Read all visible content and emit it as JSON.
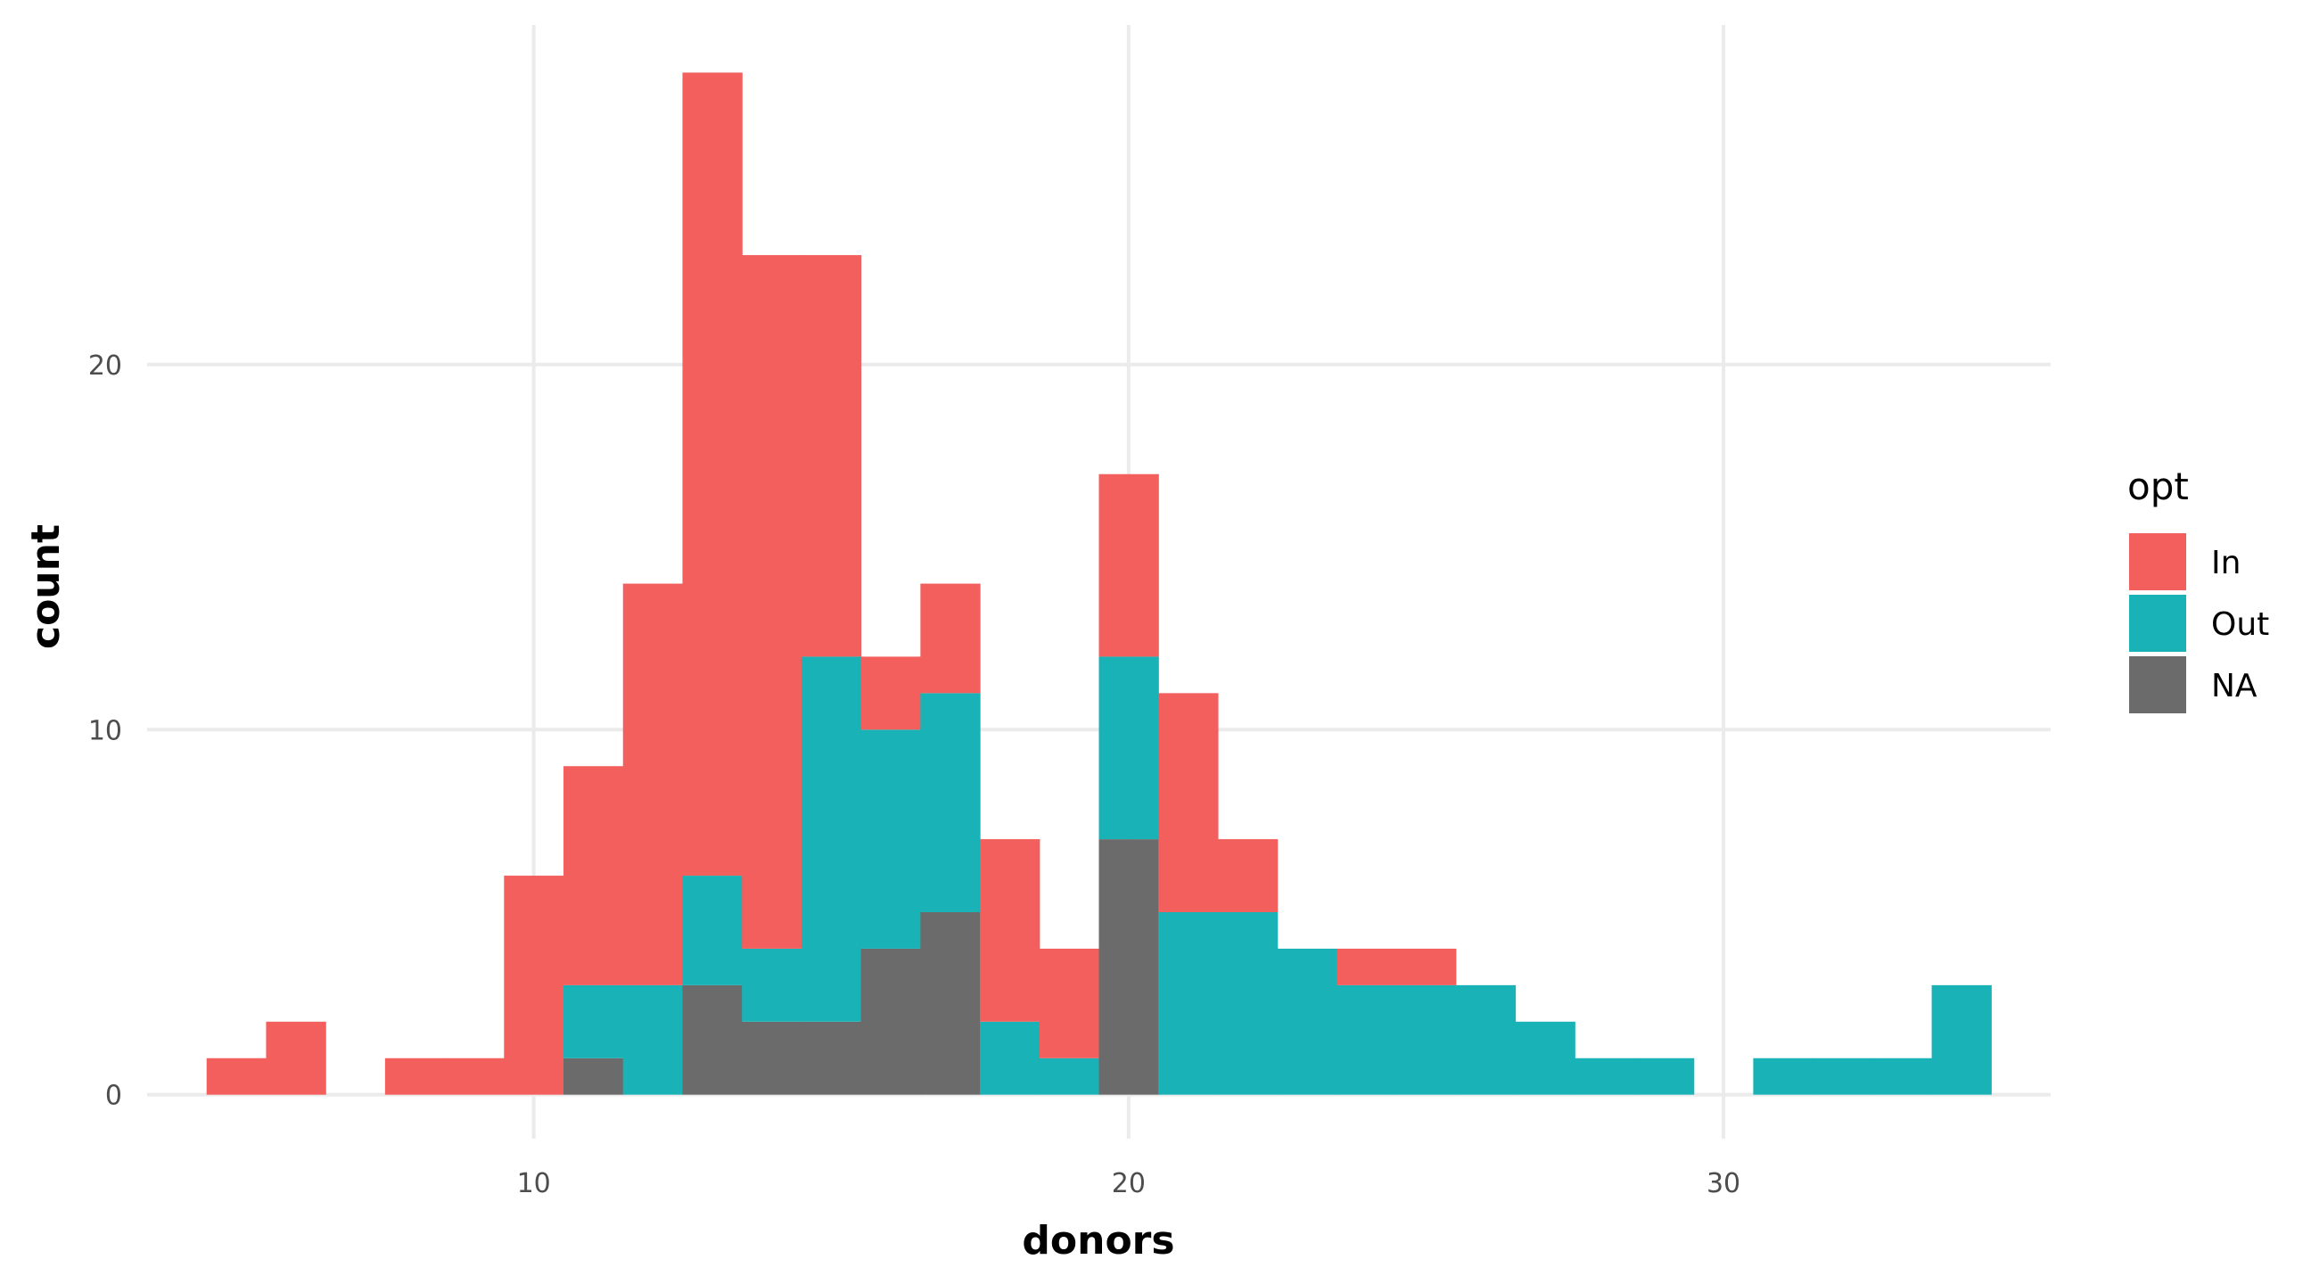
{
  "chart_data": {
    "type": "bar",
    "stacked": true,
    "title": "",
    "xlabel": "donors",
    "ylabel": "count",
    "xlim": [
      3.5,
      35.5
    ],
    "ylim": [
      -1.4,
      29.5
    ],
    "x_ticks": [
      10,
      20,
      30
    ],
    "y_ticks": [
      0,
      10,
      20
    ],
    "x_tick_labels": [
      "10",
      "20",
      "30"
    ],
    "y_tick_labels": [
      "0",
      "10",
      "20"
    ],
    "bin_width": 1,
    "bin_centers": [
      5,
      6,
      7,
      8,
      9,
      10,
      11,
      12,
      13,
      14,
      15,
      16,
      17,
      18,
      19,
      20,
      21,
      22,
      23,
      24,
      25,
      26,
      27,
      28,
      29,
      30,
      31,
      32,
      33,
      34
    ],
    "series": [
      {
        "name": "NA",
        "color": "#6b6b6b",
        "values": [
          0,
          0,
          0,
          0,
          0,
          0,
          1,
          0,
          3,
          2,
          2,
          4,
          5,
          0,
          0,
          7,
          0,
          0,
          0,
          0,
          0,
          0,
          0,
          0,
          0,
          0,
          0,
          0,
          0,
          0
        ]
      },
      {
        "name": "Out",
        "color": "#19b3b7",
        "values": [
          0,
          0,
          0,
          0,
          0,
          0,
          2,
          3,
          3,
          2,
          10,
          6,
          6,
          2,
          1,
          5,
          5,
          5,
          4,
          3,
          3,
          3,
          2,
          1,
          1,
          0,
          1,
          1,
          1,
          3
        ]
      },
      {
        "name": "In",
        "color": "#f25f5c",
        "values": [
          1,
          2,
          0,
          1,
          1,
          6,
          6,
          11,
          22,
          19,
          11,
          2,
          3,
          5,
          3,
          5,
          6,
          2,
          0,
          1,
          1,
          0,
          0,
          0,
          0,
          0,
          0,
          0,
          0,
          0
        ]
      }
    ],
    "legend": {
      "title": "opt",
      "position": "right",
      "entries": [
        {
          "label": "In",
          "color": "#f25f5c"
        },
        {
          "label": "Out",
          "color": "#19b3b7"
        },
        {
          "label": "NA",
          "color": "#6b6b6b"
        }
      ]
    },
    "grid": true,
    "grid_color": "#ebebeb",
    "background": "#ffffff"
  }
}
